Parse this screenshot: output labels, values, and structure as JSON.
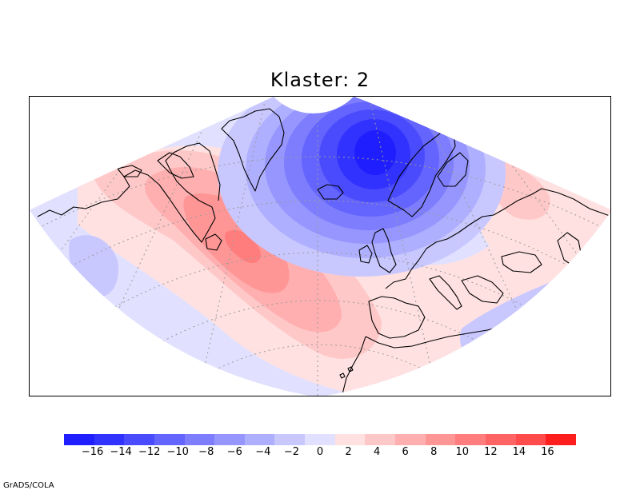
{
  "title": "Klaster: 2",
  "credit": "GrADS/COLA",
  "colorbar": {
    "colors": [
      "#1e1efe",
      "#3232fe",
      "#4b4bfe",
      "#6464fe",
      "#7d7dfe",
      "#9696fe",
      "#afafff",
      "#c8c8ff",
      "#e1e1ff",
      "#ffe1e1",
      "#ffc8c8",
      "#ffafaf",
      "#ff9696",
      "#ff7d7d",
      "#ff6464",
      "#ff4b4b",
      "#ff1e1e"
    ],
    "ticks": [
      "−16",
      "−14",
      "−12",
      "−10",
      "−8",
      "−6",
      "−4",
      "−2",
      "0",
      "2",
      "4",
      "6",
      "8",
      "10",
      "12",
      "14",
      "16"
    ]
  },
  "map": {
    "projection": "polar-stereographic-sector",
    "field": [
      {
        "level": "-16",
        "color": "#1e1efe",
        "lon": 12,
        "lat": 65
      },
      {
        "level": "4",
        "color": "#ffc8c8",
        "lon": -45,
        "lat": 50
      },
      {
        "level": "6",
        "color": "#ffafaf",
        "lon": -43,
        "lat": 50
      },
      {
        "level": "8",
        "color": "#ff9696",
        "lon": -42,
        "lat": 51
      },
      {
        "level": "10",
        "color": "#ff7d7d",
        "lon": -41,
        "lat": 52
      },
      {
        "level": "-2",
        "color": "#c8c8ff",
        "lon": -70,
        "lat": 38
      },
      {
        "level": "-2",
        "color": "#c8c8ff",
        "lon": 25,
        "lat": 38
      },
      {
        "level": "2",
        "color": "#ffe1e1",
        "lon": 55,
        "lat": 55
      }
    ]
  }
}
